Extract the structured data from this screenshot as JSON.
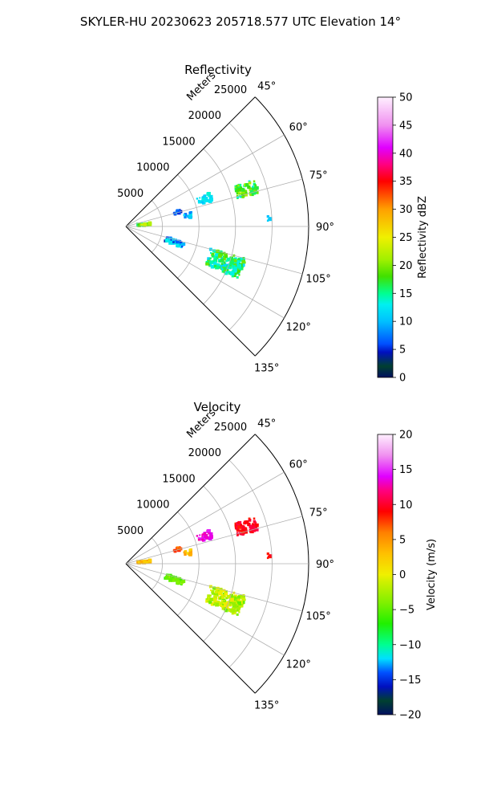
{
  "suptitle": "SKYLER-HU  20230623  205718.577 UTC Elevation 14°",
  "chart_data": [
    {
      "type": "polar-sector",
      "title": "Reflectivity",
      "theta_range_deg": [
        45,
        135
      ],
      "r_max_m": 25000,
      "r_axis_label": "Meters",
      "r_ticks": [
        5000,
        10000,
        15000,
        20000,
        25000
      ],
      "r_tick_labels": [
        "5000",
        "10000",
        "15000",
        "20000",
        "25000"
      ],
      "theta_ticks": [
        45,
        60,
        75,
        90,
        105,
        120,
        135
      ],
      "theta_tick_labels": [
        "45°",
        "60°",
        "75°",
        "90°",
        "105°",
        "120°",
        "135°"
      ],
      "grid": true,
      "colorbar": {
        "label": "Reflectivity dBZ",
        "min": 0,
        "max": 50,
        "ticks": [
          0,
          5,
          10,
          15,
          20,
          25,
          30,
          35,
          40,
          45,
          50
        ],
        "tick_labels": [
          "0",
          "5",
          "10",
          "15",
          "20",
          "25",
          "30",
          "35",
          "40",
          "45",
          "50"
        ],
        "stops": [
          {
            "v": 0,
            "c": "#001060"
          },
          {
            "v": 2,
            "c": "#004030"
          },
          {
            "v": 4.5,
            "c": "#0010c0"
          },
          {
            "v": 6,
            "c": "#0050ff"
          },
          {
            "v": 10,
            "c": "#00c0ff"
          },
          {
            "v": 13,
            "c": "#00f0f0"
          },
          {
            "v": 15,
            "c": "#00ff90"
          },
          {
            "v": 18,
            "c": "#40e000"
          },
          {
            "v": 21,
            "c": "#a0f000"
          },
          {
            "v": 25,
            "c": "#f0f000"
          },
          {
            "v": 30,
            "c": "#ffa000"
          },
          {
            "v": 35,
            "c": "#ff0000"
          },
          {
            "v": 38,
            "c": "#ff0080"
          },
          {
            "v": 41,
            "c": "#e000ff"
          },
          {
            "v": 45,
            "c": "#f090f0"
          },
          {
            "v": 50,
            "c": "#fff0ff"
          }
        ]
      },
      "echo_regions": [
        {
          "theta": 73,
          "r": 17200,
          "dtheta": 3.0,
          "dr": 1500,
          "n": 70,
          "vmin": 13,
          "vmax": 22
        },
        {
          "theta": 71,
          "r": 11400,
          "dtheta": 2.5,
          "dr": 1000,
          "n": 30,
          "vmin": 10,
          "vmax": 14
        },
        {
          "theta": 74.5,
          "r": 7300,
          "dtheta": 1.5,
          "dr": 500,
          "n": 12,
          "vmin": 4,
          "vmax": 8
        },
        {
          "theta": 80,
          "r": 8600,
          "dtheta": 2.0,
          "dr": 500,
          "n": 12,
          "vmin": 6,
          "vmax": 13
        },
        {
          "theta": 84.5,
          "r": 2500,
          "dtheta": 2.5,
          "dr": 900,
          "n": 40,
          "vmin": 14,
          "vmax": 24
        },
        {
          "theta": 87,
          "r": 19700,
          "dtheta": 1.0,
          "dr": 300,
          "n": 5,
          "vmin": 10,
          "vmax": 13
        },
        {
          "theta": 108,
          "r": 7000,
          "dtheta": 3.0,
          "dr": 1300,
          "n": 60,
          "vmin": 4,
          "vmax": 14
        },
        {
          "theta": 110,
          "r": 14500,
          "dtheta": 5.0,
          "dr": 2500,
          "n": 180,
          "vmin": 11,
          "vmax": 20
        }
      ]
    },
    {
      "type": "polar-sector",
      "title": "Velocity",
      "theta_range_deg": [
        45,
        135
      ],
      "r_max_m": 25000,
      "r_axis_label": "Meters",
      "r_ticks": [
        5000,
        10000,
        15000,
        20000,
        25000
      ],
      "r_tick_labels": [
        "5000",
        "10000",
        "15000",
        "20000",
        "25000"
      ],
      "theta_ticks": [
        45,
        60,
        75,
        90,
        105,
        120,
        135
      ],
      "theta_tick_labels": [
        "45°",
        "60°",
        "75°",
        "90°",
        "105°",
        "120°",
        "135°"
      ],
      "grid": true,
      "colorbar": {
        "label": "Velocity (m/s)",
        "min": -20,
        "max": 20,
        "ticks": [
          -20,
          -15,
          -10,
          -5,
          0,
          5,
          10,
          15,
          20
        ],
        "tick_labels": [
          "−20",
          "−15",
          "−10",
          "−5",
          "0",
          "5",
          "10",
          "15",
          "20"
        ],
        "stops": [
          {
            "v": -20,
            "c": "#001060"
          },
          {
            "v": -18,
            "c": "#004030"
          },
          {
            "v": -16,
            "c": "#0010c0"
          },
          {
            "v": -14,
            "c": "#0050ff"
          },
          {
            "v": -12,
            "c": "#00e0ff"
          },
          {
            "v": -10,
            "c": "#00ff90"
          },
          {
            "v": -7,
            "c": "#20f000"
          },
          {
            "v": -4,
            "c": "#80f000"
          },
          {
            "v": -1,
            "c": "#d0f000"
          },
          {
            "v": 0,
            "c": "#f0f000"
          },
          {
            "v": 3,
            "c": "#ffc000"
          },
          {
            "v": 6,
            "c": "#ff8000"
          },
          {
            "v": 9,
            "c": "#ff0000"
          },
          {
            "v": 12,
            "c": "#ff0080"
          },
          {
            "v": 14,
            "c": "#e000ff"
          },
          {
            "v": 17,
            "c": "#f090f0"
          },
          {
            "v": 20,
            "c": "#fff0ff"
          }
        ]
      },
      "echo_regions": [
        {
          "theta": 73,
          "r": 17200,
          "dtheta": 3.0,
          "dr": 1500,
          "n": 70,
          "vmin": 8,
          "vmax": 11
        },
        {
          "theta": 71,
          "r": 11400,
          "dtheta": 2.5,
          "dr": 1000,
          "n": 30,
          "vmin": 12,
          "vmax": 15
        },
        {
          "theta": 74.5,
          "r": 7300,
          "dtheta": 1.5,
          "dr": 500,
          "n": 12,
          "vmin": 6,
          "vmax": 9
        },
        {
          "theta": 80,
          "r": 8600,
          "dtheta": 2.0,
          "dr": 500,
          "n": 12,
          "vmin": 1,
          "vmax": 5
        },
        {
          "theta": 84.5,
          "r": 2500,
          "dtheta": 2.5,
          "dr": 900,
          "n": 40,
          "vmin": 1,
          "vmax": 6
        },
        {
          "theta": 87,
          "r": 19700,
          "dtheta": 1.0,
          "dr": 300,
          "n": 5,
          "vmin": 8,
          "vmax": 10
        },
        {
          "theta": 108,
          "r": 7000,
          "dtheta": 3.0,
          "dr": 1300,
          "n": 60,
          "vmin": -7,
          "vmax": -3
        },
        {
          "theta": 110,
          "r": 14500,
          "dtheta": 5.0,
          "dr": 2500,
          "n": 180,
          "vmin": -5,
          "vmax": 1
        }
      ]
    }
  ]
}
